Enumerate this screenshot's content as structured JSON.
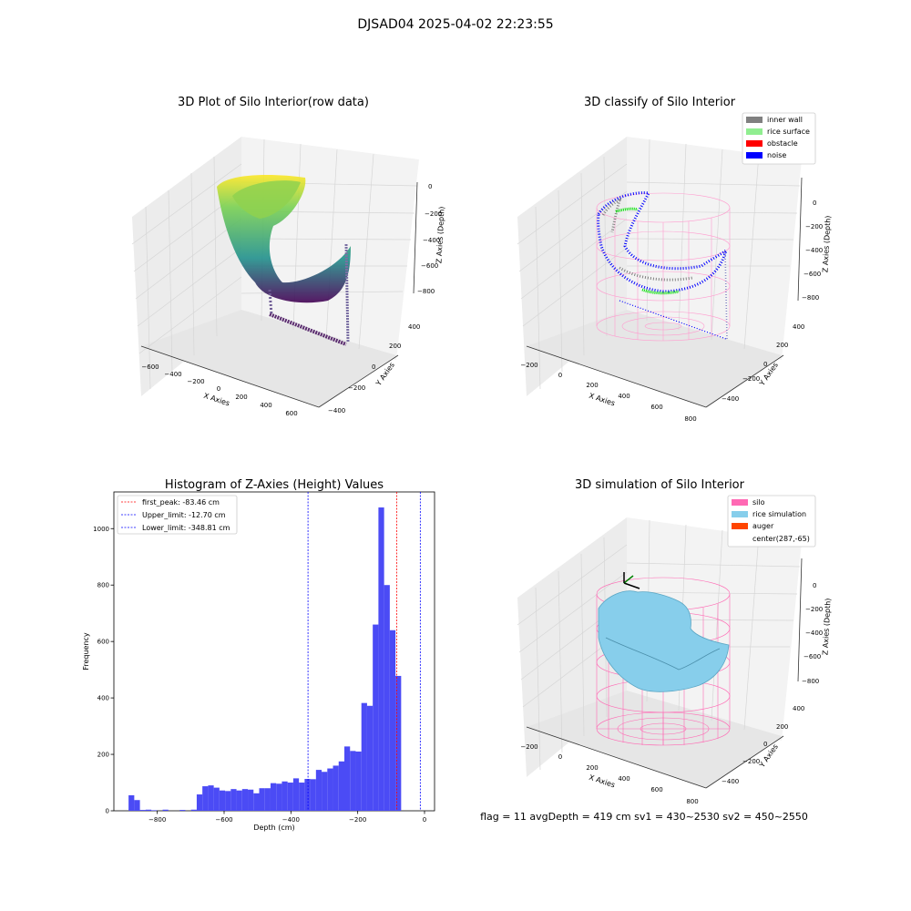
{
  "figure": {
    "suptitle": "DJSAD04 2025-04-02 22:23:55",
    "footer": "flag = 11   avgDepth = 419 cm  sv1 = 430~2530  sv2 = 450~2550"
  },
  "colors": {
    "bar": "#4b4bf5",
    "peak_line": "#ff0000",
    "limit_line": "#0000ff",
    "inner_wall": "#808080",
    "rice_surface": "#90ee90",
    "obstacle": "#ff0000",
    "noise": "#0000ff",
    "silo": "#ff69b4",
    "rice_simulation": "#87ceeb",
    "auger": "#ff4500",
    "raw_low": "#440154",
    "raw_mid": "#21918c",
    "raw_high": "#fde725"
  },
  "plot3d": {
    "raw": {
      "title": "3D Plot of Silo Interior(row data)",
      "xlabel": "X Axies",
      "ylabel": "Y Axies",
      "zlabel": "Z Axies (Depth)",
      "xticks": [
        "−600",
        "−400",
        "−200",
        "0",
        "200",
        "400",
        "600"
      ],
      "yticks": [
        "−400",
        "−200",
        "0",
        "200",
        "400"
      ],
      "zticks": [
        "0",
        "−200",
        "−400",
        "−600",
        "−800"
      ]
    },
    "classify": {
      "title": "3D classify of Silo Interior",
      "xlabel": "X Axies",
      "ylabel": "Y Axies",
      "zlabel": "Z Axies (Depth)",
      "xticks": [
        "−200",
        "0",
        "200",
        "400",
        "600",
        "800"
      ],
      "yticks": [
        "−400",
        "−200",
        "0",
        "200",
        "400"
      ],
      "zticks": [
        "0",
        "−200",
        "−400",
        "−600",
        "−800"
      ],
      "legend": [
        "inner wall",
        "rice surface",
        "obstacle",
        "noise"
      ]
    },
    "simulation": {
      "title": "3D simulation of Silo Interior",
      "xlabel": "X Axies",
      "ylabel": "Y Axies",
      "zlabel": "Z Axies (Depth)",
      "xticks": [
        "−200",
        "0",
        "200",
        "400",
        "600",
        "800"
      ],
      "yticks": [
        "−400",
        "−200",
        "0",
        "200",
        "400"
      ],
      "zticks": [
        "0",
        "−200",
        "−400",
        "−600",
        "−800"
      ],
      "legend": [
        "silo",
        "rice simulation",
        "auger",
        "center(287,-65)"
      ]
    }
  },
  "chart_data": {
    "type": "bar",
    "title": "Histogram of Z-Axies (Height) Values",
    "xlabel": "Depth (cm)",
    "ylabel": "Frequency",
    "xlim": [
      -930,
      30
    ],
    "ylim": [
      0,
      1130
    ],
    "xticks": [
      -800,
      -600,
      -400,
      -200,
      0
    ],
    "xtick_labels": [
      "−800",
      "−600",
      "−400",
      "−200",
      "0"
    ],
    "yticks": [
      0,
      200,
      400,
      600,
      800,
      1000
    ],
    "bin_width": 17.0,
    "bin_starts": [
      -886,
      -869,
      -852,
      -835,
      -818,
      -801,
      -784,
      -767,
      -750,
      -733,
      -716,
      -699,
      -682,
      -665,
      -648,
      -631,
      -614,
      -597,
      -580,
      -563,
      -546,
      -529,
      -512,
      -495,
      -478,
      -461,
      -444,
      -427,
      -410,
      -393,
      -376,
      -359,
      -342,
      -325,
      -308,
      -291,
      -274,
      -257,
      -240,
      -223,
      -206,
      -189,
      -172,
      -155,
      -138,
      -121,
      -104,
      -87,
      -70,
      -53,
      -36,
      -19
    ],
    "values": [
      55,
      38,
      3,
      4,
      2,
      0,
      4,
      0,
      0,
      3,
      0,
      4,
      58,
      87,
      90,
      82,
      72,
      70,
      77,
      72,
      77,
      75,
      62,
      80,
      80,
      98,
      96,
      104,
      100,
      115,
      100,
      113,
      112,
      145,
      138,
      150,
      160,
      175,
      228,
      212,
      210,
      382,
      372,
      660,
      1075,
      800,
      640,
      478,
      0,
      0,
      0,
      0
    ],
    "lines": [
      {
        "label": "first_peak: -83.46 cm",
        "x": -83.46,
        "style": "peak"
      },
      {
        "label": "Upper_limit: -12.70 cm",
        "x": -12.7,
        "style": "limit"
      },
      {
        "label": "Lower_limit: -348.81 cm",
        "x": -348.81,
        "style": "limit"
      }
    ],
    "legend_position": "upper left",
    "grid": false
  }
}
